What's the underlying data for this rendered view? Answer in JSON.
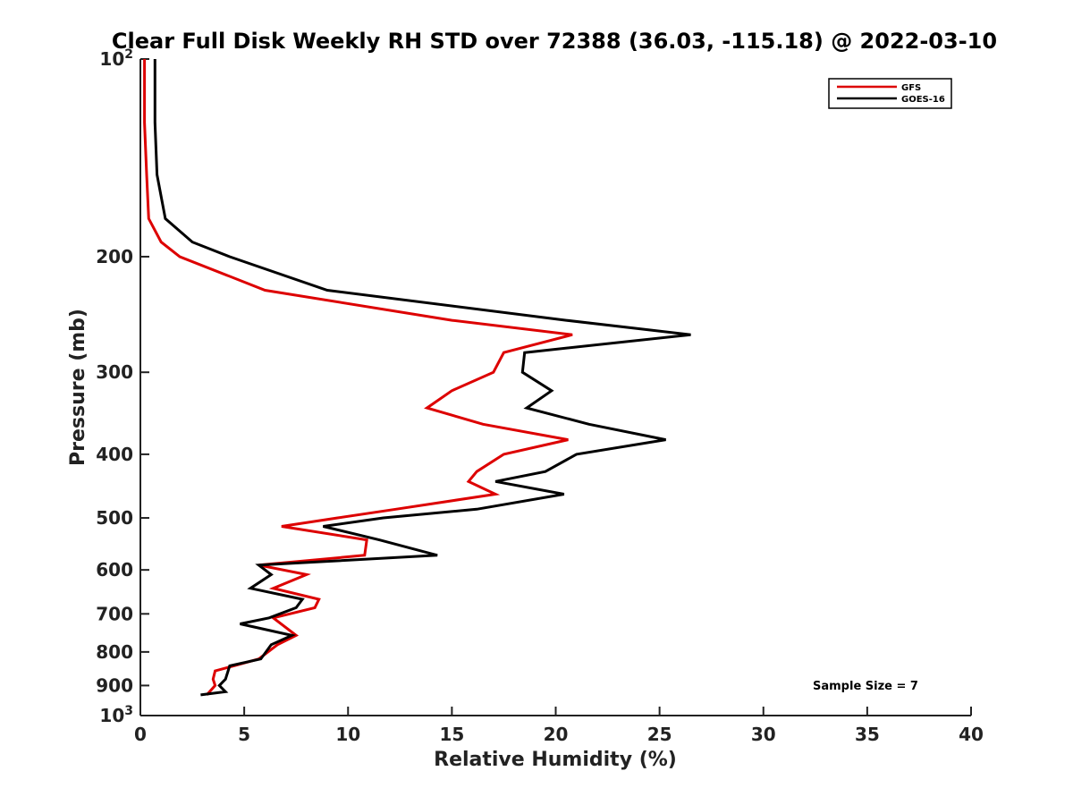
{
  "chart_data": {
    "type": "line",
    "title": "Clear Full Disk Weekly RH STD over 72388 (36.03, -115.18) @ 2022-03-10",
    "xlabel": "Relative Humidity (%)",
    "ylabel": "Pressure (mb)",
    "xlim": [
      0,
      40
    ],
    "ylim": [
      100,
      1000
    ],
    "yscale": "log",
    "y_reversed": true,
    "grid": false,
    "legend_position": "top-right",
    "x_ticks": [
      0,
      5,
      10,
      15,
      20,
      25,
      30,
      35,
      40
    ],
    "y_ticks": [
      {
        "value": 100,
        "base": "10",
        "exp": "2"
      },
      {
        "value": 200,
        "label": "200"
      },
      {
        "value": 300,
        "label": "300"
      },
      {
        "value": 400,
        "label": "400"
      },
      {
        "value": 500,
        "label": "500"
      },
      {
        "value": 600,
        "label": "600"
      },
      {
        "value": 700,
        "label": "700"
      },
      {
        "value": 800,
        "label": "800"
      },
      {
        "value": 900,
        "label": "900"
      },
      {
        "value": 1000,
        "base": "10",
        "exp": "3"
      }
    ],
    "annotation": "Sample Size = 7",
    "series": [
      {
        "name": "GFS",
        "color": "#dd0000",
        "points": [
          [
            0.2,
            100
          ],
          [
            0.2,
            125
          ],
          [
            0.3,
            150
          ],
          [
            0.4,
            175
          ],
          [
            1.0,
            190
          ],
          [
            1.9,
            200
          ],
          [
            6.0,
            225
          ],
          [
            15.0,
            250
          ],
          [
            20.8,
            263
          ],
          [
            17.5,
            280
          ],
          [
            17.0,
            300
          ],
          [
            15.0,
            320
          ],
          [
            13.8,
            340
          ],
          [
            16.5,
            360
          ],
          [
            20.6,
            380
          ],
          [
            17.5,
            400
          ],
          [
            16.2,
            425
          ],
          [
            15.8,
            440
          ],
          [
            17.1,
            460
          ],
          [
            12.3,
            485
          ],
          [
            9.5,
            500
          ],
          [
            6.8,
            515
          ],
          [
            10.9,
            540
          ],
          [
            10.8,
            570
          ],
          [
            5.7,
            590
          ],
          [
            8.0,
            610
          ],
          [
            6.4,
            640
          ],
          [
            8.6,
            665
          ],
          [
            8.4,
            685
          ],
          [
            6.4,
            710
          ],
          [
            7.5,
            755
          ],
          [
            6.6,
            780
          ],
          [
            5.7,
            820
          ],
          [
            4.5,
            840
          ],
          [
            3.6,
            855
          ],
          [
            3.5,
            880
          ],
          [
            3.6,
            900
          ],
          [
            3.2,
            930
          ]
        ]
      },
      {
        "name": "GOES-16",
        "color": "#000000",
        "points": [
          [
            0.7,
            100
          ],
          [
            0.7,
            125
          ],
          [
            0.8,
            150
          ],
          [
            1.2,
            175
          ],
          [
            2.5,
            190
          ],
          [
            4.3,
            200
          ],
          [
            9.0,
            225
          ],
          [
            20.5,
            250
          ],
          [
            26.5,
            263
          ],
          [
            18.5,
            280
          ],
          [
            18.4,
            300
          ],
          [
            19.8,
            320
          ],
          [
            18.6,
            340
          ],
          [
            21.6,
            360
          ],
          [
            25.3,
            380
          ],
          [
            21.0,
            400
          ],
          [
            19.5,
            425
          ],
          [
            17.1,
            440
          ],
          [
            20.4,
            460
          ],
          [
            16.2,
            485
          ],
          [
            11.7,
            500
          ],
          [
            8.8,
            515
          ],
          [
            11.5,
            540
          ],
          [
            14.3,
            570
          ],
          [
            5.7,
            590
          ],
          [
            6.3,
            610
          ],
          [
            5.3,
            640
          ],
          [
            7.8,
            665
          ],
          [
            7.5,
            685
          ],
          [
            6.2,
            710
          ],
          [
            4.8,
            725
          ],
          [
            7.3,
            755
          ],
          [
            6.3,
            780
          ],
          [
            5.8,
            820
          ],
          [
            4.3,
            840
          ],
          [
            4.1,
            880
          ],
          [
            3.8,
            900
          ],
          [
            4.1,
            920
          ],
          [
            2.9,
            930
          ]
        ]
      }
    ]
  }
}
